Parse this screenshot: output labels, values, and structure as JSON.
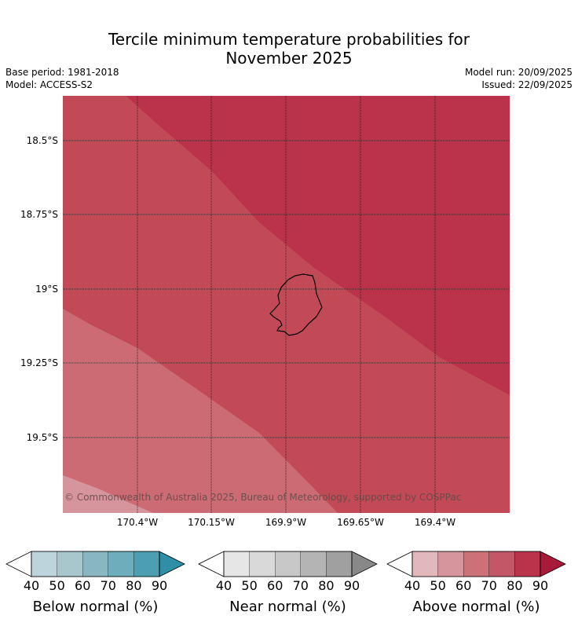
{
  "header": {
    "title_line1": "Tercile minimum temperature probabilities for",
    "title_line2": "November 2025",
    "base_period": "Base period: 1981-2018",
    "model": "Model: ACCESS-S2",
    "model_run": "Model run: 20/09/2025",
    "issued": "Issued: 22/09/2025"
  },
  "map": {
    "lat_labels": [
      "18.5°S",
      "18.75°S",
      "19°S",
      "19.25°S",
      "19.5°S"
    ],
    "lon_labels": [
      "170.4°W",
      "170.15°W",
      "169.9°W",
      "169.65°W",
      "169.4°W"
    ],
    "copyright": "© Commonwealth of Australia 2025, Bureau of Meteorology, supported by COSPPac",
    "zones": [
      {
        "category": "above",
        "probability": "50-60",
        "color": "#d6949c"
      },
      {
        "category": "above",
        "probability": "60-70",
        "color": "#cd6b74"
      },
      {
        "category": "above",
        "probability": "70-80",
        "color": "#c24a57"
      },
      {
        "category": "above",
        "probability": "80-90",
        "color": "#ba334a"
      }
    ]
  },
  "legends": [
    {
      "label": "Below normal (%)",
      "ticks": [
        "40",
        "50",
        "60",
        "70",
        "80",
        "90"
      ],
      "colors": [
        "#ffffff",
        "#bed4dc",
        "#a7c7cd",
        "#8ab6c2",
        "#6eadbb",
        "#4b9fb1",
        "#2e8fa6"
      ]
    },
    {
      "label": "Near normal (%)",
      "ticks": [
        "40",
        "50",
        "60",
        "70",
        "80",
        "90"
      ],
      "colors": [
        "#ffffff",
        "#e6e6e6",
        "#d9d9d9",
        "#c8c8c8",
        "#b4b4b4",
        "#a0a0a0",
        "#888888"
      ]
    },
    {
      "label": "Above normal (%)",
      "ticks": [
        "40",
        "50",
        "60",
        "70",
        "80",
        "90"
      ],
      "colors": [
        "#ffffff",
        "#e3b8bd",
        "#d6959c",
        "#cd7178",
        "#c35667",
        "#ba334a",
        "#a81a3a"
      ]
    }
  ]
}
